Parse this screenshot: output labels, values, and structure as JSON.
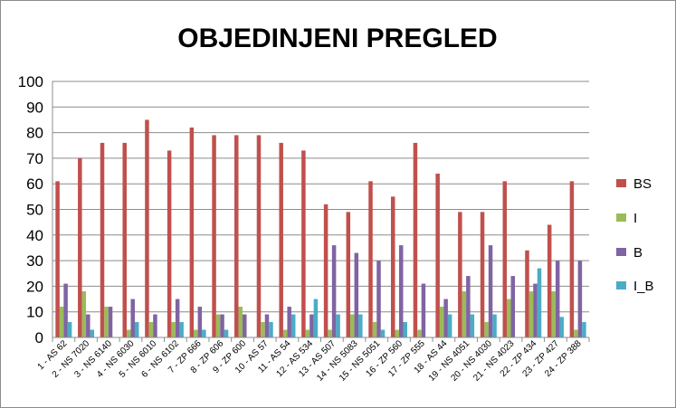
{
  "chart_data": {
    "type": "bar",
    "title": "OBJEDINJENI PREGLED",
    "xlabel": "",
    "ylabel": "",
    "ylim": [
      0,
      100
    ],
    "yticks": [
      0,
      10,
      20,
      30,
      40,
      50,
      60,
      70,
      80,
      90,
      100
    ],
    "grid": true,
    "legend_position": "right",
    "categories": [
      "1 - AS 62",
      "2 - NS 7020",
      "3 - NS 6140",
      "4 - NS 6030",
      "5 - NS 6010",
      "6 - NS 6102",
      "7 - ZP 666",
      "8 - ZP 606",
      "9 - ZP 600",
      "10 - AS 57",
      "11 - AS 54",
      "12 - AS 534",
      "13 - AS 507",
      "14 - NS 5083",
      "15 - NS 5051",
      "16 - ZP 560",
      "17 - ZP 555",
      "18 - AS 44",
      "19 - NS 4051",
      "20 - NS 4030",
      "21 - NS 4023",
      "22 - ZP 434",
      "23 - ZP 427",
      "24 - ZP 388"
    ],
    "series": [
      {
        "name": "BS",
        "color": "#c0504d",
        "values": [
          61,
          70,
          76,
          76,
          85,
          73,
          82,
          79,
          79,
          79,
          76,
          73,
          52,
          49,
          61,
          55,
          76,
          64,
          49,
          49,
          61,
          34,
          44,
          61
        ]
      },
      {
        "name": "I",
        "color": "#9bbb59",
        "values": [
          12,
          18,
          12,
          3,
          6,
          6,
          3,
          9,
          12,
          6,
          3,
          3,
          3,
          9,
          6,
          3,
          3,
          12,
          18,
          6,
          15,
          18,
          18,
          3
        ]
      },
      {
        "name": "B",
        "color": "#8064a2",
        "values": [
          21,
          9,
          12,
          15,
          9,
          15,
          12,
          9,
          9,
          9,
          12,
          9,
          36,
          33,
          30,
          36,
          21,
          15,
          24,
          36,
          24,
          21,
          30,
          30
        ]
      },
      {
        "name": "I_B",
        "color": "#4bacc6",
        "values": [
          6,
          3,
          0,
          6,
          0,
          6,
          3,
          3,
          0,
          6,
          9,
          15,
          9,
          9,
          3,
          6,
          0,
          9,
          9,
          9,
          0,
          27,
          8,
          6
        ]
      }
    ]
  }
}
